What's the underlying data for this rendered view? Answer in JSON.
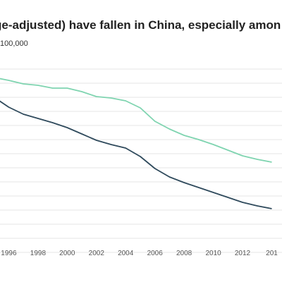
{
  "title": "ge-adjusted) have fallen in China, especially amon",
  "subtitle": "100,000",
  "chart_data": {
    "type": "line",
    "x": [
      1995,
      1996,
      1997,
      1998,
      1999,
      2000,
      2001,
      2002,
      2003,
      2004,
      2005,
      2006,
      2007,
      2008,
      2009,
      2010,
      2011,
      2012,
      2013,
      2014
    ],
    "series": [
      {
        "color": "#7fd4b0",
        "values": [
          94,
          92,
          89.5,
          88.5,
          86.5,
          86.5,
          84,
          80.5,
          79.5,
          77.5,
          72.5,
          63,
          57.5,
          53,
          50,
          46.5,
          42.5,
          38.5,
          36,
          34
        ]
      },
      {
        "color": "#2f4a5c",
        "values": [
          80,
          73,
          68,
          65,
          62,
          58.5,
          54,
          49.5,
          46.5,
          44,
          38,
          29.5,
          23.5,
          19.5,
          16,
          12.5,
          9,
          5.5,
          3,
          1
        ]
      }
    ],
    "xtick_labels": [
      "1996",
      "1998",
      "2000",
      "2002",
      "2004",
      "2006",
      "2008",
      "2010",
      "2012",
      "201"
    ],
    "xlim": [
      1995.4,
      2014.7
    ],
    "ylim": [
      -30,
      106
    ],
    "gridlines": [
      -30,
      -20,
      -10,
      0,
      10,
      20,
      30,
      40,
      50,
      60,
      70,
      80,
      90,
      100
    ],
    "grid": true,
    "legend": "none"
  }
}
